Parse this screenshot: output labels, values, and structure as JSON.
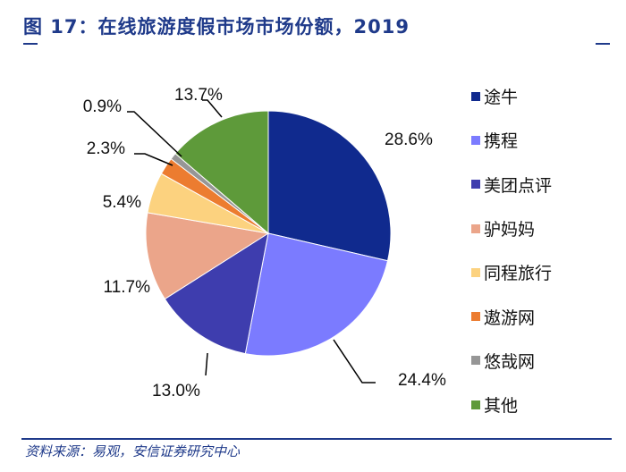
{
  "title": "图 17：在线旅游度假市场市场份额，2019",
  "source": "资料来源：易观，安信证券研究中心",
  "chart_data": {
    "type": "pie",
    "title": "",
    "start_angle": "12 o'clock, clockwise",
    "legend_position": "right",
    "slices": [
      {
        "name": "途牛",
        "value": 28.6,
        "label": "28.6%",
        "color": "#102A8E"
      },
      {
        "name": "携程",
        "value": 24.4,
        "label": "24.4%",
        "color": "#7B7BFF"
      },
      {
        "name": "美团点评",
        "value": 13.0,
        "label": "13.0%",
        "color": "#3E3DAE"
      },
      {
        "name": "驴妈妈",
        "value": 11.7,
        "label": "11.7%",
        "color": "#EBA58A"
      },
      {
        "name": "同程旅行",
        "value": 5.4,
        "label": "5.4%",
        "color": "#FCD27F"
      },
      {
        "name": "遨游网",
        "value": 2.3,
        "label": "2.3%",
        "color": "#EC7C30"
      },
      {
        "name": "悠哉网",
        "value": 0.9,
        "label": "0.9%",
        "color": "#969696"
      },
      {
        "name": "其他",
        "value": 13.7,
        "label": "13.7%",
        "color": "#5E9A3A"
      }
    ]
  }
}
